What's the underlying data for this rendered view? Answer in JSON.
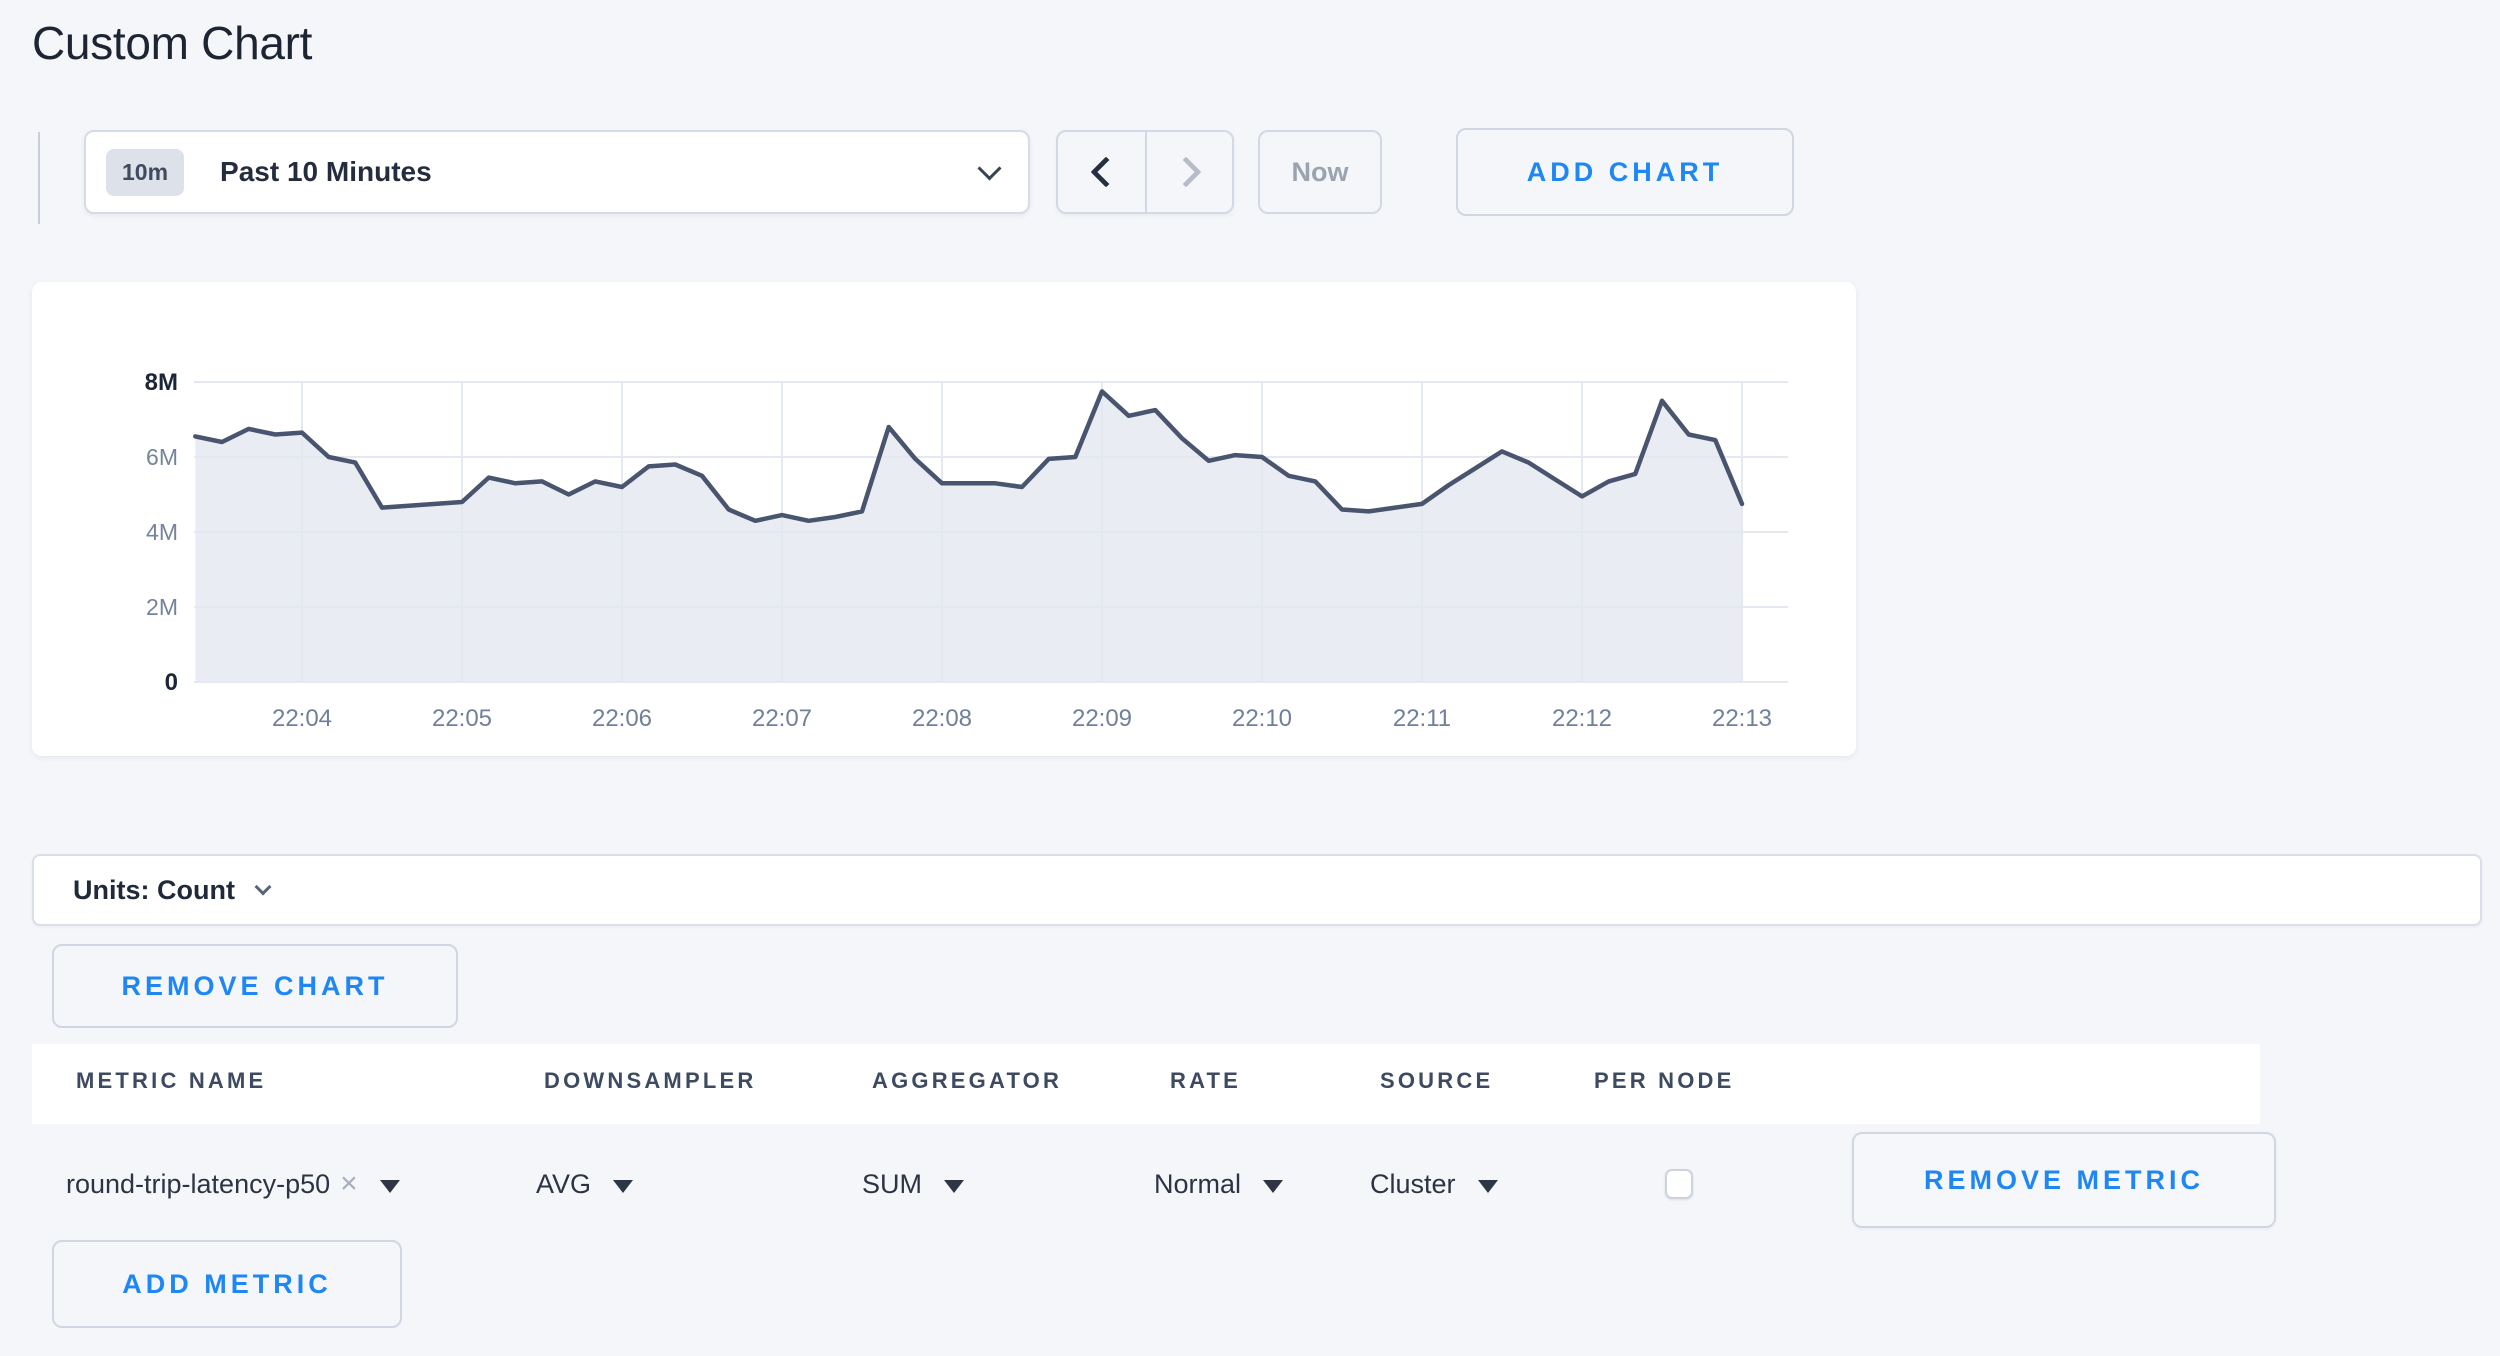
{
  "page": {
    "title": "Custom Chart"
  },
  "toolbar": {
    "time_scale": {
      "badge": "10m",
      "label": "Past 10 Minutes"
    },
    "now_label": "Now",
    "add_chart_label": "ADD CHART"
  },
  "units_bar": {
    "label": "Units: Count"
  },
  "remove_chart_label": "REMOVE CHART",
  "glyphs": {
    "clear": "×"
  },
  "metrics_table": {
    "columns": [
      "METRIC NAME",
      "DOWNSAMPLER",
      "AGGREGATOR",
      "RATE",
      "SOURCE",
      "PER NODE"
    ],
    "rows": [
      {
        "metric_name": "round-trip-latency-p50",
        "downsampler": "AVG",
        "aggregator": "SUM",
        "rate": "Normal",
        "source": "Cluster",
        "per_node_checked": false,
        "remove_label": "REMOVE METRIC"
      }
    ],
    "add_metric_label": "ADD METRIC"
  },
  "chart_data": {
    "type": "area",
    "title": "",
    "series_name": "round-trip-latency-p50",
    "x_start": "22:03:20",
    "x_interval_seconds": 10,
    "seconds_before_first_tick": 40,
    "x_tick_labels": [
      "22:04",
      "22:05",
      "22:06",
      "22:07",
      "22:08",
      "22:09",
      "22:10",
      "22:11",
      "22:12",
      "22:13"
    ],
    "y_tick_labels": [
      "0",
      "2M",
      "4M",
      "6M",
      "8M"
    ],
    "y_ticks_millions": [
      0,
      2,
      4,
      6,
      8
    ],
    "ylim_millions": [
      0,
      8
    ],
    "grid": true,
    "legend": "none",
    "values_millions": [
      6.55,
      6.4,
      6.75,
      6.6,
      6.65,
      6.0,
      5.85,
      4.65,
      4.7,
      4.75,
      4.8,
      5.45,
      5.3,
      5.35,
      5.0,
      5.35,
      5.2,
      5.75,
      5.8,
      5.5,
      4.6,
      4.3,
      4.45,
      4.3,
      4.4,
      4.55,
      6.8,
      5.95,
      5.3,
      5.3,
      5.3,
      5.2,
      5.95,
      6.0,
      7.75,
      7.1,
      7.25,
      6.5,
      5.9,
      6.05,
      6.0,
      5.5,
      5.35,
      4.6,
      4.55,
      4.65,
      4.75,
      5.25,
      5.7,
      6.15,
      5.85,
      5.4,
      4.95,
      5.35,
      5.55,
      7.5,
      6.6,
      6.45,
      4.75
    ]
  },
  "colors": {
    "accent_blue": "#1f87f3",
    "page_background": "#f4f6fa",
    "line": "#49556e",
    "area_fill": "#e9ecf2",
    "grid": "#e3e8f1",
    "axis_label": "#76839c",
    "axis_label_strong": "#1c2638"
  }
}
